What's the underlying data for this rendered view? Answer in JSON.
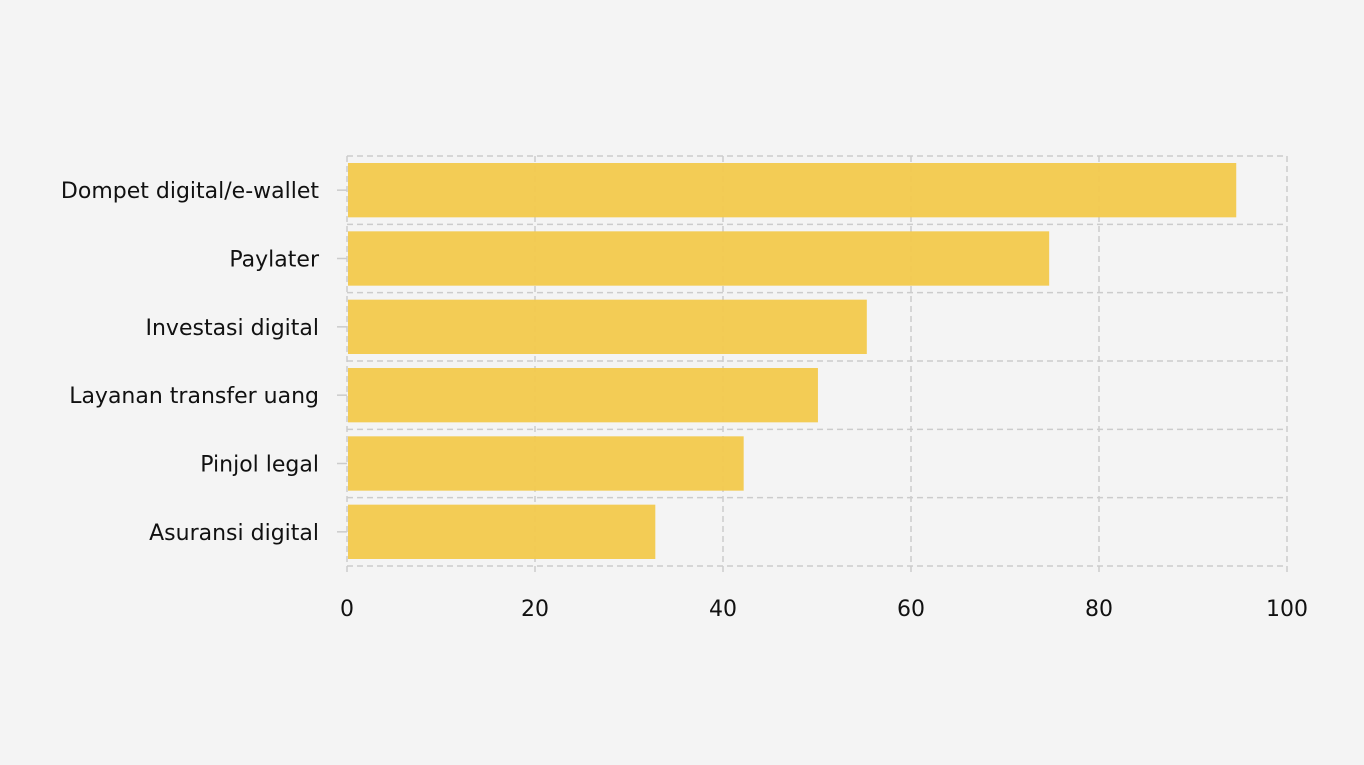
{
  "chart_data": {
    "type": "bar",
    "orientation": "horizontal",
    "categories": [
      "Dompet digital/e-wallet",
      "Paylater",
      "Investasi digital",
      "Layanan transfer uang",
      "Pinjol legal",
      "Asuransi digital"
    ],
    "values": [
      94.6,
      74.7,
      55.3,
      50.1,
      42.2,
      32.8
    ],
    "xlim": [
      0,
      100
    ],
    "x_ticks": [
      0,
      20,
      40,
      60,
      80,
      100
    ],
    "x_tick_labels": [
      "0",
      "20",
      "40",
      "60",
      "80",
      "100"
    ],
    "grid": true,
    "grid_style": "dashed",
    "bar_color": "#f2c94c",
    "title": "",
    "xlabel": "",
    "ylabel": ""
  }
}
